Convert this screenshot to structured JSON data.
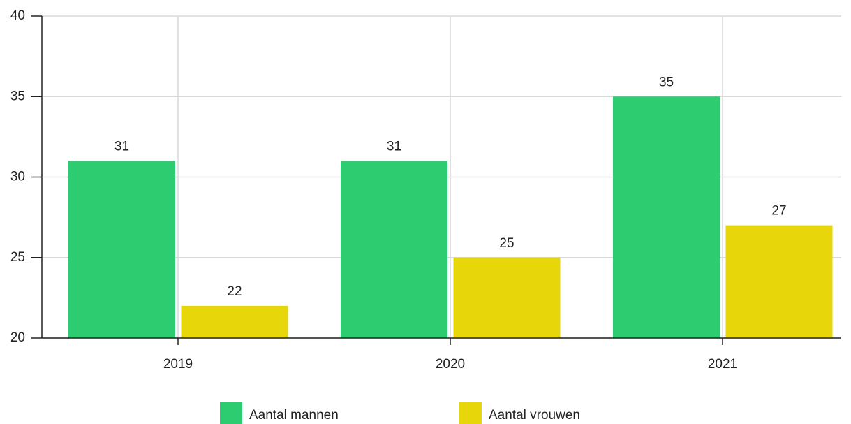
{
  "chart_data": {
    "type": "bar",
    "categories": [
      "2019",
      "2020",
      "2021"
    ],
    "series": [
      {
        "name": "Aantal mannen",
        "color": "#2ecc71",
        "values": [
          31,
          31,
          35
        ]
      },
      {
        "name": "Aantal vrouwen",
        "color": "#e6d60a",
        "values": [
          22,
          25,
          27
        ]
      }
    ],
    "ylim": [
      20,
      40
    ],
    "yticks": [
      20,
      25,
      30,
      35,
      40
    ],
    "grid": true,
    "legend": "bottom"
  }
}
